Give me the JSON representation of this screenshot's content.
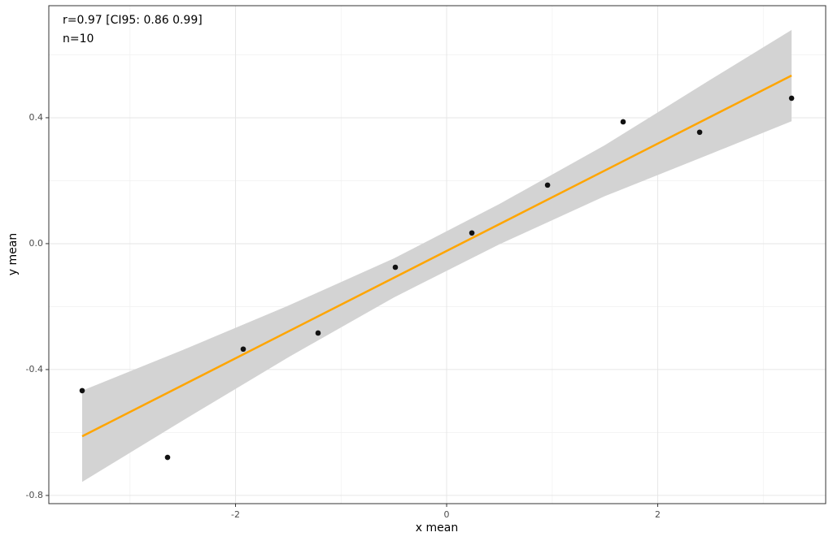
{
  "chart_data": {
    "type": "scatter",
    "annotations": [
      "r=0.97 [CI95: 0.86 0.99]",
      "n=10"
    ],
    "xlabel": "x mean",
    "ylabel": "y mean",
    "xlim": [
      -3.769,
      3.591
    ],
    "ylim": [
      -0.826,
      0.756
    ],
    "xticks": [
      -2,
      0,
      2
    ],
    "yticks": [
      -0.8,
      -0.4,
      {
        "value": 0,
        "label": "0.0"
      },
      0.4
    ],
    "x_minor_ticks": [
      -3,
      -1,
      1,
      3
    ],
    "y_minor_ticks": [
      -0.6,
      -0.2,
      0.2,
      0.6
    ],
    "grid": true,
    "points": {
      "color": "#111111",
      "x": [
        -3.453,
        -2.644,
        -1.927,
        -1.218,
        -0.486,
        0.239,
        0.956,
        1.672,
        2.397,
        3.268
      ],
      "y": [
        -0.467,
        -0.679,
        -0.335,
        -0.284,
        -0.075,
        0.034,
        0.186,
        0.387,
        0.354,
        0.462
      ]
    },
    "fit": {
      "color": "#ffa500",
      "x": [
        -3.453,
        3.268
      ],
      "y": [
        -0.612,
        0.534
      ]
    },
    "band": {
      "color": "#d3d3d3",
      "x": [
        -3.453,
        -2.5,
        -1.5,
        -0.5,
        0.5,
        1.5,
        2.5,
        3.268
      ],
      "upper": [
        -0.467,
        -0.338,
        -0.197,
        -0.047,
        0.126,
        0.313,
        0.521,
        0.679
      ],
      "lower": [
        -0.757,
        -0.562,
        -0.361,
        -0.171,
        -0.002,
        0.151,
        0.285,
        0.389
      ]
    }
  }
}
